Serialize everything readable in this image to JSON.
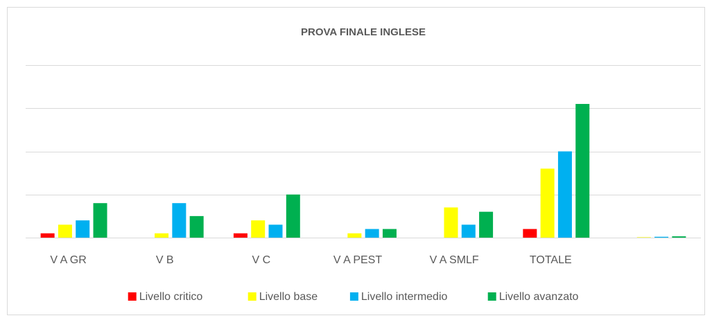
{
  "chart_data": {
    "type": "bar",
    "title": "PROVA FINALE INGLESE",
    "categories": [
      "V A GR",
      "V B",
      "V C",
      "V A PEST",
      "V A SMLF",
      "TOTALE",
      null
    ],
    "series": [
      {
        "name": "Livello critico",
        "color": "#ff0000",
        "values": [
          1,
          0,
          1,
          0,
          0,
          2,
          0
        ]
      },
      {
        "name": "Livello base",
        "color": "#ffff00",
        "values": [
          3,
          1,
          4,
          1,
          7,
          16,
          0.1
        ]
      },
      {
        "name": "Livello intermedio",
        "color": "#00b0f0",
        "values": [
          4,
          8,
          3,
          2,
          3,
          20,
          0.2
        ]
      },
      {
        "name": "Livello avanzato",
        "color": "#00b050",
        "values": [
          8,
          5,
          10,
          2,
          6,
          31,
          0.3
        ]
      }
    ],
    "ylim": [
      0,
      40
    ],
    "yticks": [
      0,
      10,
      20,
      30,
      40
    ],
    "grid": true,
    "legend": "bottom"
  }
}
